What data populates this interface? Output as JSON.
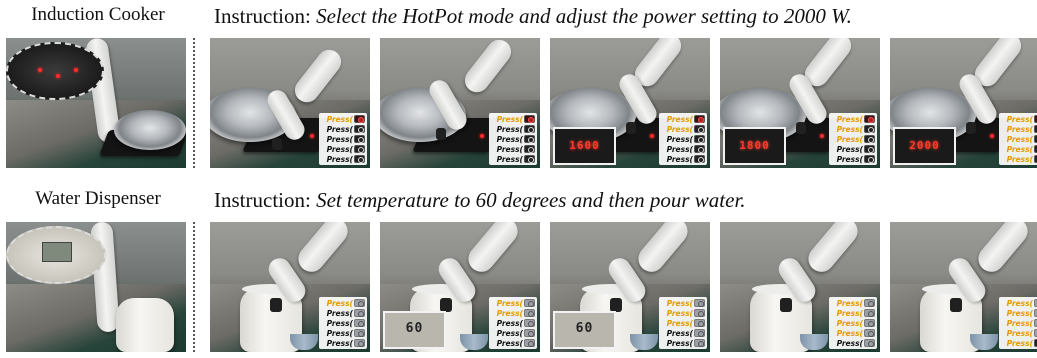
{
  "rows": [
    {
      "device": "Induction Cooker",
      "instruction_prefix": "Instruction: ",
      "instruction_text": "Select the HotPot mode and adjust the power setting to 2000 W.",
      "frames": [
        {
          "inset": null,
          "press_items": [
            {
              "text": "Press(",
              "done": true,
              "chip": "red"
            },
            {
              "text": "Press(",
              "done": false,
              "chip": "dark"
            },
            {
              "text": "Press(",
              "done": false,
              "chip": "dark"
            },
            {
              "text": "Press(",
              "done": false,
              "chip": "dark"
            },
            {
              "text": "Press(",
              "done": false,
              "chip": "dark"
            }
          ]
        },
        {
          "inset": null,
          "press_items": [
            {
              "text": "Press(",
              "done": true,
              "chip": "red"
            },
            {
              "text": "Press(",
              "done": false,
              "chip": "dark"
            },
            {
              "text": "Press(",
              "done": false,
              "chip": "dark"
            },
            {
              "text": "Press(",
              "done": false,
              "chip": "dark"
            },
            {
              "text": "Press(",
              "done": false,
              "chip": "dark"
            }
          ]
        },
        {
          "inset": "1600",
          "press_items": [
            {
              "text": "Press(",
              "done": true,
              "chip": "red"
            },
            {
              "text": "Press(",
              "done": true,
              "chip": "dark"
            },
            {
              "text": "Press(",
              "done": false,
              "chip": "dark"
            },
            {
              "text": "Press(",
              "done": false,
              "chip": "dark"
            },
            {
              "text": "Press(",
              "done": false,
              "chip": "dark"
            }
          ]
        },
        {
          "inset": "1800",
          "press_items": [
            {
              "text": "Press(",
              "done": true,
              "chip": "red"
            },
            {
              "text": "Press(",
              "done": true,
              "chip": "dark"
            },
            {
              "text": "Press(",
              "done": true,
              "chip": "dark"
            },
            {
              "text": "Press(",
              "done": false,
              "chip": "dark"
            },
            {
              "text": "Press(",
              "done": false,
              "chip": "dark"
            }
          ]
        },
        {
          "inset": "2000",
          "press_items": [
            {
              "text": "Press(",
              "done": true,
              "chip": "red"
            },
            {
              "text": "Press(",
              "done": true,
              "chip": "dark"
            },
            {
              "text": "Press(",
              "done": true,
              "chip": "dark"
            },
            {
              "text": "Press(",
              "done": true,
              "chip": "dark"
            },
            {
              "text": "Press(",
              "done": true,
              "chip": "dark"
            }
          ]
        }
      ]
    },
    {
      "device": "Water Dispenser",
      "instruction_prefix": "Instruction: ",
      "instruction_text": "Set temperature to 60 degrees and then pour water.",
      "frames": [
        {
          "inset": null,
          "press_items": [
            {
              "text": "Press(",
              "done": true,
              "chip": "gray"
            },
            {
              "text": "Press(",
              "done": false,
              "chip": "gray"
            },
            {
              "text": "Press(",
              "done": false,
              "chip": "gray"
            },
            {
              "text": "Press(",
              "done": false,
              "chip": "gray"
            },
            {
              "text": "Press(",
              "done": false,
              "chip": "gray"
            }
          ]
        },
        {
          "inset": "60",
          "press_items": [
            {
              "text": "Press(",
              "done": true,
              "chip": "gray"
            },
            {
              "text": "Press(",
              "done": true,
              "chip": "gray"
            },
            {
              "text": "Press(",
              "done": false,
              "chip": "gray"
            },
            {
              "text": "Press(",
              "done": false,
              "chip": "gray"
            },
            {
              "text": "Press(",
              "done": false,
              "chip": "gray"
            }
          ]
        },
        {
          "inset": "60",
          "press_items": [
            {
              "text": "Press(",
              "done": true,
              "chip": "gray"
            },
            {
              "text": "Press(",
              "done": true,
              "chip": "gray"
            },
            {
              "text": "Press(",
              "done": true,
              "chip": "gray"
            },
            {
              "text": "Press(",
              "done": false,
              "chip": "gray"
            },
            {
              "text": "Press(",
              "done": false,
              "chip": "gray"
            }
          ]
        },
        {
          "inset": null,
          "press_items": [
            {
              "text": "Press(",
              "done": true,
              "chip": "gray"
            },
            {
              "text": "Press(",
              "done": true,
              "chip": "gray"
            },
            {
              "text": "Press(",
              "done": true,
              "chip": "gray"
            },
            {
              "text": "Press(",
              "done": true,
              "chip": "gray"
            },
            {
              "text": "Press(",
              "done": false,
              "chip": "gray"
            }
          ]
        },
        {
          "inset": null,
          "press_items": [
            {
              "text": "Press(",
              "done": true,
              "chip": "gray"
            },
            {
              "text": "Press(",
              "done": true,
              "chip": "gray"
            },
            {
              "text": "Press(",
              "done": true,
              "chip": "gray"
            },
            {
              "text": "Press(",
              "done": true,
              "chip": "gray"
            },
            {
              "text": "Press(",
              "done": true,
              "chip": "dark"
            }
          ]
        }
      ]
    }
  ],
  "colors": {
    "press_done": "#e39a00",
    "press_pending": "#111111",
    "inset_digits": "#ff3a2a"
  }
}
